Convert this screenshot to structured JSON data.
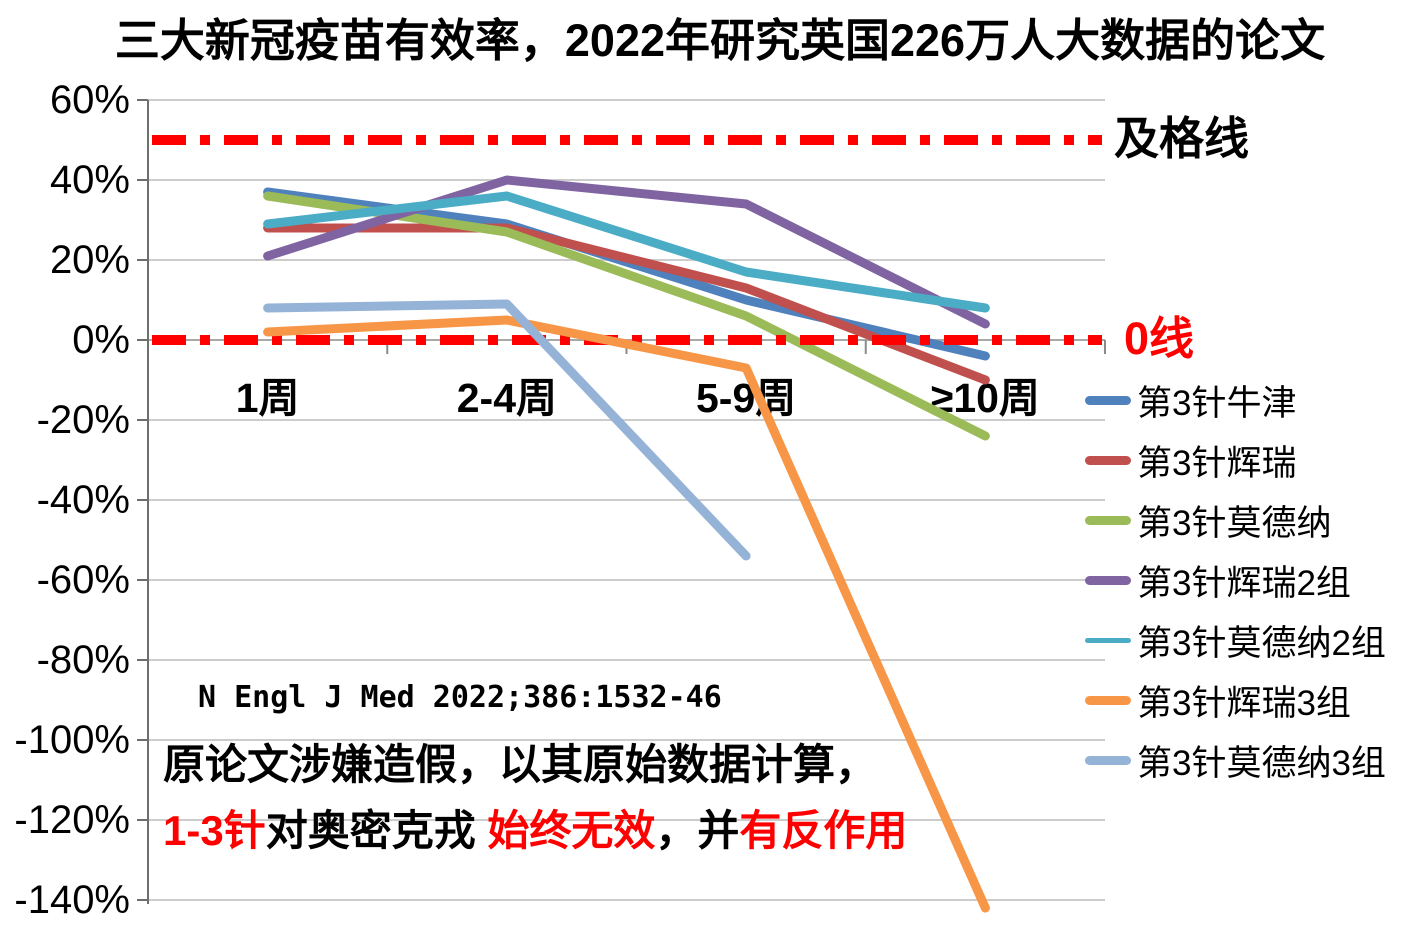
{
  "title": "三大新冠疫苗有效率，2022年研究英国226万人大数据的论文",
  "chart_data": {
    "type": "line",
    "categories": [
      "1周",
      "2-4周",
      "5-9周",
      "≥10周"
    ],
    "series": [
      {
        "name": "第3针牛津",
        "color": "#4F81BD",
        "values": [
          37,
          29,
          10,
          -4
        ]
      },
      {
        "name": "第3针辉瑞",
        "color": "#C0504D",
        "values": [
          28,
          28,
          13,
          -10
        ]
      },
      {
        "name": "第3针莫德纳",
        "color": "#9BBB59",
        "values": [
          36,
          27,
          6,
          -24
        ]
      },
      {
        "name": "第3针辉瑞2组",
        "color": "#8064A2",
        "values": [
          21,
          40,
          34,
          4
        ]
      },
      {
        "name": "第3针莫德纳2组",
        "color": "#4BACC6",
        "values": [
          29,
          36,
          17,
          8
        ]
      },
      {
        "name": "第3针辉瑞3组",
        "color": "#F79646",
        "values": [
          2,
          5,
          -7,
          -142
        ]
      },
      {
        "name": "第3针莫德纳3组",
        "color": "#95B3D7",
        "values": [
          8,
          9,
          -54,
          null
        ]
      }
    ],
    "title": "三大新冠疫苗有效率，2022年研究英国226万人大数据的论文",
    "xlabel": "",
    "ylabel": "",
    "ylim": [
      -140,
      60
    ],
    "ytick_step": 20,
    "ytick_format": "percent",
    "grid": true,
    "legend_position": "right"
  },
  "reference_lines": [
    {
      "label": "及格线",
      "value": 50,
      "line_color": "#FF0000",
      "label_color": "#000000"
    },
    {
      "label": "0线",
      "value": 0,
      "line_color": "#FF0000",
      "label_color": "#FF0000"
    }
  ],
  "annotations": {
    "citation": "N Engl J Med 2022;386:1532-46",
    "line1": "原论文涉嫌造假，以其原始数据计算，",
    "line2_segments": [
      {
        "text": "1-3针",
        "color": "#FF0000"
      },
      {
        "text": "对奥密克戎 ",
        "color": "#000000"
      },
      {
        "text": "始终无效",
        "color": "#FF0000"
      },
      {
        "text": "，并",
        "color": "#000000"
      },
      {
        "text": "有反作用",
        "color": "#FF0000"
      }
    ]
  }
}
